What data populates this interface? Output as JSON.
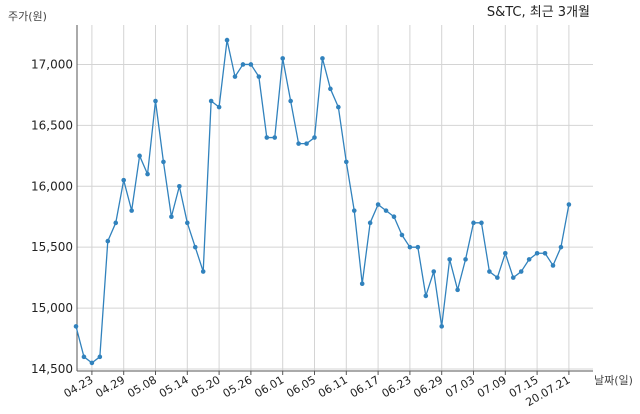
{
  "chart_data": {
    "type": "line",
    "title": "S&TC, 최근 3개월",
    "ylabel": "주가(원)",
    "xlabel": "날짜(일)",
    "ylim": [
      14500,
      17250
    ],
    "yticks": [
      14500,
      15000,
      15500,
      16000,
      16500,
      17000
    ],
    "ytick_labels": [
      "14,500",
      "15,000",
      "15,500",
      "16,000",
      "16,500",
      "17,000"
    ],
    "x_tick_labels": [
      "04.23",
      "04.29",
      "05.08",
      "05.14",
      "05.20",
      "05.26",
      "06.01",
      "06.05",
      "06.11",
      "06.17",
      "06.23",
      "06.29",
      "07.03",
      "07.09",
      "07.15",
      "20.07.21"
    ],
    "x_tick_indices": [
      2,
      6,
      10,
      14,
      18,
      22,
      26,
      30,
      34,
      38,
      42,
      46,
      50,
      54,
      58,
      62
    ],
    "grid": true,
    "color": "#3182bd",
    "series": [
      {
        "values": [
          14850,
          14600,
          14550,
          14600,
          15550,
          15700,
          16050,
          15800,
          16250,
          16100,
          16700,
          16200,
          15750,
          16000,
          15700,
          15500,
          15300,
          16700,
          16650,
          17200,
          16900,
          17000,
          17000,
          16900,
          16400,
          16400,
          17050,
          16700,
          16350,
          16350,
          16400,
          17050,
          16800,
          16650,
          16200,
          15800,
          15200,
          15700,
          15850,
          15800,
          15750,
          15600,
          15500,
          15500,
          15100,
          15300,
          14850,
          15400,
          15150,
          15400,
          15700,
          15700,
          15300,
          15250,
          15450,
          15250,
          15300,
          15400,
          15450,
          15450,
          15350,
          15500,
          15850
        ]
      }
    ]
  }
}
